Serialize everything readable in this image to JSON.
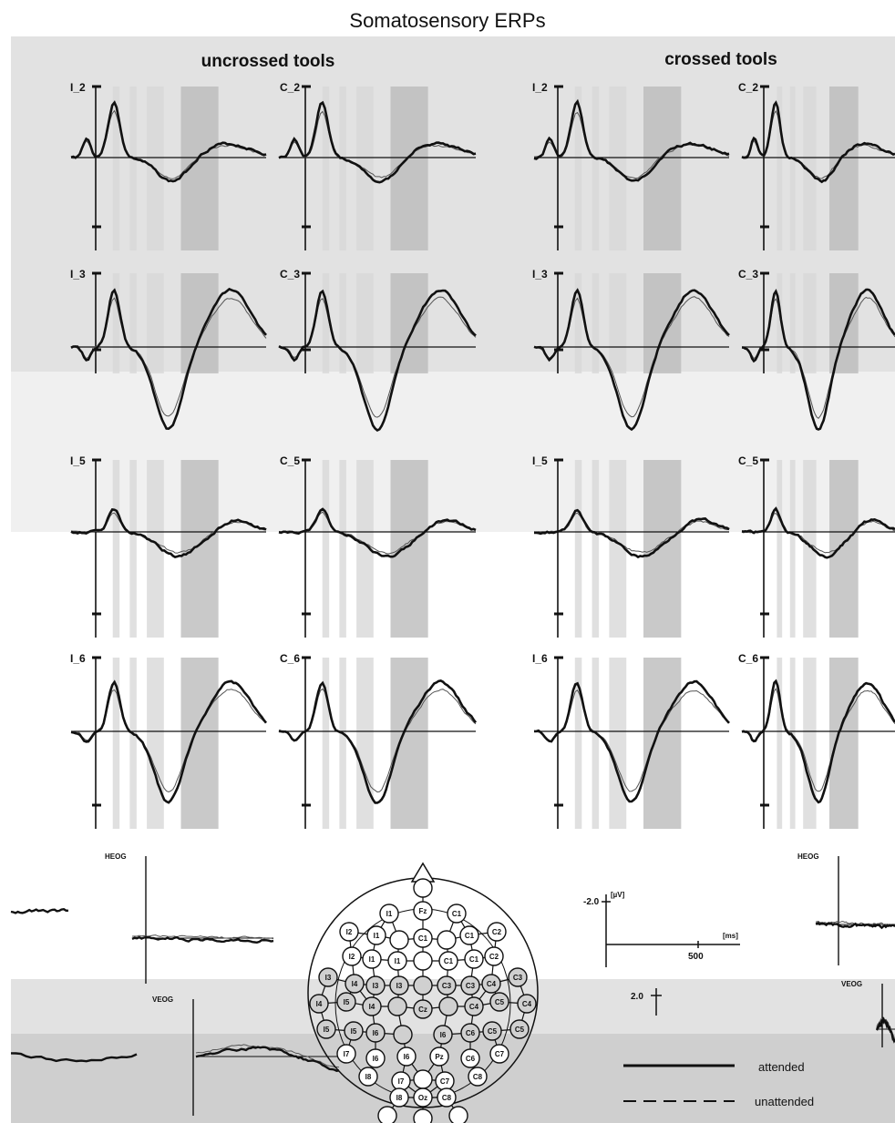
{
  "figure": {
    "title": "Somatosensory ERPs",
    "conditions": [
      "uncrossed tools",
      "crossed tools"
    ]
  },
  "chart_data": {
    "type": "line",
    "title": "Somatosensory ERPs",
    "panel_groups": [
      "uncrossed tools",
      "crossed tools"
    ],
    "electrode_labels": [
      "I_2",
      "C_2",
      "I_3",
      "C_3",
      "I_5",
      "C_5",
      "I_6",
      "C_6"
    ],
    "eog_labels": [
      "HEOG",
      "VEOG"
    ],
    "series": [
      {
        "name": "attended",
        "style": "solid"
      },
      {
        "name": "unattended",
        "style": "dashed"
      }
    ],
    "scale_bar": {
      "y_top": "-2.0",
      "y_bottom": "2.0",
      "y_unit": "[µV]",
      "x_tick": "500",
      "x_unit": "[ms]"
    }
  },
  "legend": {
    "attended": "attended",
    "unattended": "unattended"
  },
  "head_map": {
    "electrodes": [
      "I1",
      "I2",
      "I3",
      "I4",
      "I5",
      "I6",
      "I7",
      "I8",
      "C1",
      "C2",
      "C3",
      "C4",
      "C5",
      "C6",
      "C7",
      "C8",
      "Fz",
      "Cz",
      "Pz",
      "Oz"
    ]
  },
  "colors": {
    "shade_light": "#d8d8d8",
    "shade_dark": "#bcbcbc",
    "band_light": "#f0f0f0",
    "band_mid": "#e2e2e2",
    "band_dark": "#cfcfcf"
  }
}
